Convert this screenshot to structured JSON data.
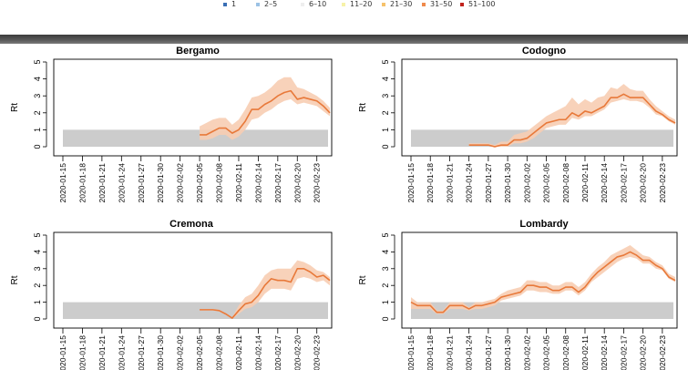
{
  "legend": {
    "items": [
      {
        "label": "1",
        "color": "#3a6fb5"
      },
      {
        "label": "2–5",
        "color": "#9cc2e5"
      },
      {
        "label": "6–10",
        "color": "#eeeeee"
      },
      {
        "label": "11–20",
        "color": "#f7f2a8"
      },
      {
        "label": "21–30",
        "color": "#f6c26b"
      },
      {
        "label": "31–50",
        "color": "#ef8a4c"
      },
      {
        "label": "51–100",
        "color": "#c0221c"
      }
    ]
  },
  "colors": {
    "line": "#e8793a",
    "band": "#f7cdb3",
    "threshold_band": "#cccccc"
  },
  "chart_data": [
    {
      "type": "line",
      "title": "Bergamo",
      "ylabel": "Rt",
      "ylim": [
        0,
        5
      ],
      "yticks": [
        0,
        1,
        2,
        3,
        4,
        5
      ],
      "x_tick_labels": [
        "2020-01-15",
        "2020-01-18",
        "2020-01-21",
        "2020-01-24",
        "2020-01-27",
        "2020-01-30",
        "2020-02-02",
        "2020-02-05",
        "2020-02-08",
        "2020-02-11",
        "2020-02-14",
        "2020-02-17",
        "2020-02-20",
        "2020-02-23"
      ],
      "x_range": [
        "2020-01-15",
        "2020-02-25"
      ],
      "threshold_band": [
        0,
        1
      ],
      "x": [
        "2020-02-05",
        "2020-02-06",
        "2020-02-07",
        "2020-02-08",
        "2020-02-09",
        "2020-02-10",
        "2020-02-11",
        "2020-02-12",
        "2020-02-13",
        "2020-02-14",
        "2020-02-15",
        "2020-02-16",
        "2020-02-17",
        "2020-02-18",
        "2020-02-19",
        "2020-02-20",
        "2020-02-21",
        "2020-02-22",
        "2020-02-23",
        "2020-02-24",
        "2020-02-25"
      ],
      "y": [
        0.7,
        0.7,
        0.9,
        1.1,
        1.1,
        0.8,
        1.0,
        1.5,
        2.2,
        2.2,
        2.5,
        2.7,
        3.0,
        3.2,
        3.3,
        2.8,
        2.9,
        2.8,
        2.7,
        2.4,
        2.0
      ],
      "lower": [
        0.4,
        0.4,
        0.5,
        0.7,
        0.7,
        0.4,
        0.6,
        1.0,
        1.6,
        1.7,
        2.0,
        2.2,
        2.5,
        2.7,
        2.8,
        2.5,
        2.6,
        2.5,
        2.4,
        2.1,
        1.8
      ],
      "upper": [
        1.2,
        1.4,
        1.6,
        1.7,
        1.7,
        1.3,
        1.6,
        2.2,
        2.9,
        3.0,
        3.2,
        3.5,
        3.9,
        4.1,
        4.1,
        3.5,
        3.4,
        3.2,
        3.0,
        2.7,
        2.3
      ]
    },
    {
      "type": "line",
      "title": "Codogno",
      "ylabel": "Rt",
      "ylim": [
        0,
        5
      ],
      "yticks": [
        0,
        1,
        2,
        3,
        4,
        5
      ],
      "x_tick_labels": [
        "2020-01-15",
        "2020-01-18",
        "2020-01-21",
        "2020-01-24",
        "2020-01-27",
        "2020-01-30",
        "2020-02-02",
        "2020-02-05",
        "2020-02-08",
        "2020-02-11",
        "2020-02-14",
        "2020-02-17",
        "2020-02-20",
        "2020-02-23"
      ],
      "x_range": [
        "2020-01-15",
        "2020-02-25"
      ],
      "threshold_band": [
        0,
        1
      ],
      "x": [
        "2020-01-24",
        "2020-01-25",
        "2020-01-26",
        "2020-01-27",
        "2020-01-28",
        "2020-01-29",
        "2020-01-30",
        "2020-01-31",
        "2020-02-01",
        "2020-02-02",
        "2020-02-03",
        "2020-02-04",
        "2020-02-05",
        "2020-02-06",
        "2020-02-07",
        "2020-02-08",
        "2020-02-09",
        "2020-02-10",
        "2020-02-11",
        "2020-02-12",
        "2020-02-13",
        "2020-02-14",
        "2020-02-15",
        "2020-02-16",
        "2020-02-17",
        "2020-02-18",
        "2020-02-19",
        "2020-02-20",
        "2020-02-21",
        "2020-02-22",
        "2020-02-23",
        "2020-02-24",
        "2020-02-25"
      ],
      "y": [
        0.1,
        0.1,
        0.1,
        0.1,
        0.0,
        0.1,
        0.1,
        0.4,
        0.4,
        0.5,
        0.8,
        1.1,
        1.4,
        1.5,
        1.6,
        1.6,
        2.0,
        1.8,
        2.1,
        2.0,
        2.2,
        2.4,
        2.9,
        2.9,
        3.1,
        2.9,
        2.9,
        2.9,
        2.5,
        2.1,
        1.9,
        1.6,
        1.4
      ],
      "lower": [
        0.1,
        0.1,
        0.1,
        0.1,
        0.0,
        0.0,
        0.0,
        0.2,
        0.2,
        0.3,
        0.5,
        0.8,
        1.1,
        1.2,
        1.3,
        1.3,
        1.7,
        1.6,
        1.8,
        1.8,
        2.0,
        2.2,
        2.6,
        2.7,
        2.8,
        2.7,
        2.7,
        2.6,
        2.3,
        1.9,
        1.8,
        1.5,
        1.3
      ],
      "upper": [
        0.2,
        0.2,
        0.2,
        0.2,
        0.1,
        0.3,
        0.3,
        0.7,
        0.8,
        0.9,
        1.2,
        1.5,
        1.8,
        2.0,
        2.2,
        2.4,
        2.9,
        2.5,
        2.8,
        2.6,
        2.9,
        3.0,
        3.5,
        3.4,
        3.7,
        3.4,
        3.3,
        3.3,
        2.8,
        2.4,
        2.1,
        1.8,
        1.6
      ]
    },
    {
      "type": "line",
      "title": "Cremona",
      "ylabel": "Rt",
      "ylim": [
        0,
        5
      ],
      "yticks": [
        0,
        1,
        2,
        3,
        4,
        5
      ],
      "x_tick_labels": [
        "2020-01-15",
        "2020-01-18",
        "2020-01-21",
        "2020-01-24",
        "2020-01-27",
        "2020-01-30",
        "2020-02-02",
        "2020-02-05",
        "2020-02-08",
        "2020-02-11",
        "2020-02-14",
        "2020-02-17",
        "2020-02-20",
        "2020-02-23"
      ],
      "x_range": [
        "2020-01-15",
        "2020-02-25"
      ],
      "threshold_band": [
        0,
        1
      ],
      "x": [
        "2020-02-05",
        "2020-02-06",
        "2020-02-07",
        "2020-02-08",
        "2020-02-09",
        "2020-02-10",
        "2020-02-11",
        "2020-02-12",
        "2020-02-13",
        "2020-02-14",
        "2020-02-15",
        "2020-02-16",
        "2020-02-17",
        "2020-02-18",
        "2020-02-19",
        "2020-02-20",
        "2020-02-21",
        "2020-02-22",
        "2020-02-23",
        "2020-02-24",
        "2020-02-25"
      ],
      "y": [
        0.55,
        0.55,
        0.55,
        0.5,
        0.3,
        0.05,
        0.5,
        0.9,
        1.0,
        1.4,
        2.0,
        2.4,
        2.3,
        2.3,
        2.2,
        3.0,
        3.0,
        2.8,
        2.5,
        2.6,
        2.3
      ],
      "lower": [
        0.5,
        0.5,
        0.5,
        0.45,
        0.25,
        0.0,
        0.3,
        0.6,
        0.7,
        1.0,
        1.5,
        1.8,
        1.8,
        1.8,
        1.7,
        2.4,
        2.5,
        2.4,
        2.2,
        2.3,
        2.0
      ],
      "upper": [
        0.6,
        0.6,
        0.6,
        0.55,
        0.35,
        0.1,
        0.8,
        1.3,
        1.5,
        2.0,
        2.6,
        2.9,
        3.0,
        3.0,
        3.0,
        3.5,
        3.4,
        3.2,
        2.9,
        2.8,
        2.5
      ]
    },
    {
      "type": "line",
      "title": "Lombardy",
      "ylabel": "Rt",
      "ylim": [
        0,
        5
      ],
      "yticks": [
        0,
        1,
        2,
        3,
        4,
        5
      ],
      "x_tick_labels": [
        "2020-01-15",
        "2020-01-18",
        "2020-01-21",
        "2020-01-24",
        "2020-01-27",
        "2020-01-30",
        "2020-02-02",
        "2020-02-05",
        "2020-02-08",
        "2020-02-11",
        "2020-02-14",
        "2020-02-17",
        "2020-02-20",
        "2020-02-23"
      ],
      "x_range": [
        "2020-01-15",
        "2020-02-25"
      ],
      "threshold_band": [
        0,
        1
      ],
      "x": [
        "2020-01-15",
        "2020-01-16",
        "2020-01-17",
        "2020-01-18",
        "2020-01-19",
        "2020-01-20",
        "2020-01-21",
        "2020-01-22",
        "2020-01-23",
        "2020-01-24",
        "2020-01-25",
        "2020-01-26",
        "2020-01-27",
        "2020-01-28",
        "2020-01-29",
        "2020-01-30",
        "2020-01-31",
        "2020-02-01",
        "2020-02-02",
        "2020-02-03",
        "2020-02-04",
        "2020-02-05",
        "2020-02-06",
        "2020-02-07",
        "2020-02-08",
        "2020-02-09",
        "2020-02-10",
        "2020-02-11",
        "2020-02-12",
        "2020-02-13",
        "2020-02-14",
        "2020-02-15",
        "2020-02-16",
        "2020-02-17",
        "2020-02-18",
        "2020-02-19",
        "2020-02-20",
        "2020-02-21",
        "2020-02-22",
        "2020-02-23",
        "2020-02-24",
        "2020-02-25"
      ],
      "y": [
        1.0,
        0.8,
        0.8,
        0.8,
        0.4,
        0.4,
        0.8,
        0.8,
        0.8,
        0.6,
        0.8,
        0.8,
        0.9,
        1.0,
        1.3,
        1.4,
        1.5,
        1.6,
        2.0,
        2.0,
        1.9,
        1.9,
        1.7,
        1.7,
        1.9,
        1.9,
        1.6,
        1.9,
        2.4,
        2.8,
        3.1,
        3.4,
        3.7,
        3.8,
        4.0,
        3.8,
        3.5,
        3.5,
        3.2,
        3.0,
        2.5,
        2.3
      ],
      "lower": [
        0.6,
        0.6,
        0.6,
        0.6,
        0.3,
        0.3,
        0.6,
        0.6,
        0.6,
        0.5,
        0.6,
        0.6,
        0.7,
        0.8,
        1.1,
        1.2,
        1.3,
        1.4,
        1.7,
        1.7,
        1.6,
        1.6,
        1.5,
        1.5,
        1.7,
        1.7,
        1.4,
        1.7,
        2.2,
        2.5,
        2.8,
        3.1,
        3.4,
        3.6,
        3.7,
        3.6,
        3.3,
        3.3,
        3.0,
        2.9,
        2.4,
        2.2
      ],
      "upper": [
        1.3,
        1.0,
        1.0,
        1.0,
        0.5,
        0.5,
        1.0,
        1.0,
        1.0,
        0.7,
        1.0,
        1.0,
        1.1,
        1.2,
        1.5,
        1.7,
        1.8,
        1.9,
        2.3,
        2.3,
        2.2,
        2.2,
        2.0,
        2.0,
        2.2,
        2.2,
        1.9,
        2.2,
        2.7,
        3.1,
        3.4,
        3.8,
        4.0,
        4.2,
        4.4,
        4.1,
        3.8,
        3.7,
        3.4,
        3.2,
        2.7,
        2.5
      ]
    }
  ]
}
